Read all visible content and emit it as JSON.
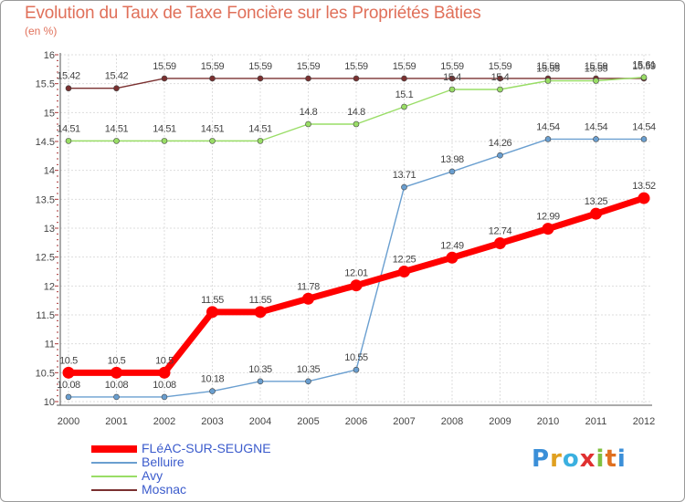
{
  "title": "Evolution du Taux de Taxe Foncière sur les Propriétés Bâties",
  "subtitle": "(en %)",
  "logo": {
    "letters": [
      "P",
      "r",
      "o",
      "x",
      "i",
      "t",
      "i"
    ],
    "colors": [
      "#3b8fd8",
      "#e0a020",
      "#3bb0e0",
      "#e03030",
      "#80c040",
      "#e07020",
      "#3b8fd8"
    ]
  },
  "chart_data": {
    "type": "line",
    "title": "Evolution du Taux de Taxe Foncière sur les Propriétés Bâties",
    "ylabel": "(en %)",
    "xlabel": "",
    "x": [
      "2000",
      "2001",
      "2002",
      "2003",
      "2004",
      "2005",
      "2006",
      "2007",
      "2008",
      "2009",
      "2010",
      "2011",
      "2012"
    ],
    "ylim": [
      10,
      16
    ],
    "yticks": [
      "10",
      "10.5",
      "11",
      "11.5",
      "12",
      "12.5",
      "13",
      "13.5",
      "14",
      "14.5",
      "15",
      "15.5",
      "16"
    ],
    "grid": true,
    "series": [
      {
        "name": "FLéAC-SUR-SEUGNE",
        "color": "#ff0000",
        "values": [
          10.5,
          10.5,
          10.5,
          11.55,
          11.55,
          11.78,
          12.01,
          12.25,
          12.49,
          12.74,
          12.99,
          13.25,
          13.52
        ],
        "labels": [
          "10.5",
          "10.5",
          "10.5",
          "11.55",
          "11.55",
          "11.78",
          "12.01",
          "12.25",
          "12.49",
          "12.74",
          "12.99",
          "13.25",
          "13.52"
        ]
      },
      {
        "name": "Belluire",
        "color": "#6a9fd0",
        "values": [
          10.08,
          10.08,
          10.08,
          10.18,
          10.35,
          10.35,
          10.55,
          13.71,
          13.98,
          14.26,
          14.54,
          14.54,
          14.54
        ],
        "labels": [
          "10.08",
          "10.08",
          "10.08",
          "10.18",
          "10.35",
          "10.35",
          "10.55",
          "13.71",
          "13.98",
          "14.26",
          "14.54",
          "14.54",
          "14.54"
        ]
      },
      {
        "name": "Avy",
        "color": "#99dd66",
        "values": [
          14.51,
          14.51,
          14.51,
          14.51,
          14.51,
          14.8,
          14.8,
          15.1,
          15.4,
          15.4,
          15.55,
          15.55,
          15.61
        ],
        "labels": [
          "14.51",
          "14.51",
          "14.51",
          "14.51",
          "14.51",
          "14.8",
          "14.8",
          "15.1",
          "15.4",
          "15.4",
          "15.55",
          "15.55",
          "15.61"
        ]
      },
      {
        "name": "Mosnac",
        "color": "#7a3030",
        "values": [
          15.42,
          15.42,
          15.59,
          15.59,
          15.59,
          15.59,
          15.59,
          15.59,
          15.59,
          15.59,
          15.59,
          15.59,
          15.59
        ],
        "labels": [
          "15.42",
          "15.42",
          "15.59",
          "15.59",
          "15.59",
          "15.59",
          "15.59",
          "15.59",
          "15.59",
          "15.59",
          "15.59",
          "15.59",
          "15.59"
        ]
      }
    ],
    "legend_position": "bottom-left"
  }
}
